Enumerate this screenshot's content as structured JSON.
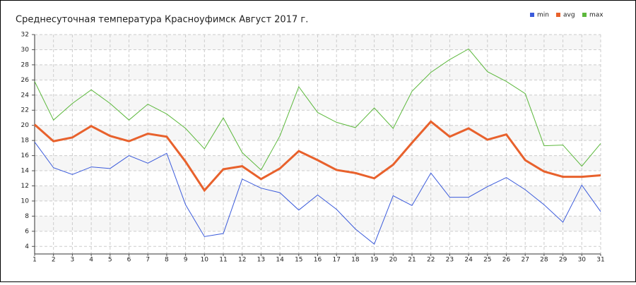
{
  "chart_data": {
    "type": "line",
    "title": "Среднесуточная температура Красноуфимск  Август 2017 г.",
    "x": [
      1,
      2,
      3,
      4,
      5,
      6,
      7,
      8,
      9,
      10,
      11,
      12,
      13,
      14,
      15,
      16,
      17,
      18,
      19,
      20,
      21,
      22,
      23,
      24,
      25,
      26,
      27,
      28,
      29,
      30,
      31
    ],
    "xlim": [
      1,
      31
    ],
    "xticks": [
      1,
      2,
      3,
      4,
      5,
      6,
      7,
      8,
      9,
      10,
      11,
      12,
      13,
      14,
      15,
      16,
      17,
      18,
      19,
      20,
      21,
      22,
      23,
      24,
      25,
      26,
      27,
      28,
      29,
      30,
      31
    ],
    "ylim": [
      3,
      32
    ],
    "yticks": [
      4,
      6,
      8,
      10,
      12,
      14,
      16,
      18,
      20,
      22,
      24,
      26,
      28,
      30,
      32
    ],
    "grid": true,
    "legend": "top-right",
    "series": [
      {
        "name": "min",
        "color": "#3b5bdb",
        "values": [
          17.8,
          14.4,
          13.5,
          14.5,
          14.3,
          16.0,
          15.0,
          16.3,
          9.5,
          5.3,
          5.7,
          12.9,
          11.7,
          11.1,
          8.8,
          10.8,
          8.9,
          6.3,
          4.3,
          10.7,
          9.4,
          13.7,
          10.5,
          10.5,
          11.9,
          13.1,
          11.5,
          9.5,
          7.2,
          12.1,
          8.6
        ]
      },
      {
        "name": "avg",
        "color": "#e8612c",
        "values": [
          20.1,
          17.9,
          18.4,
          19.9,
          18.6,
          17.9,
          18.9,
          18.5,
          15.2,
          11.4,
          14.2,
          14.6,
          12.9,
          14.3,
          16.6,
          15.4,
          14.1,
          13.7,
          13.0,
          14.8,
          17.7,
          20.5,
          18.5,
          19.6,
          18.1,
          18.8,
          15.4,
          13.9,
          13.2,
          13.2,
          13.4
        ]
      },
      {
        "name": "max",
        "color": "#5cb83c",
        "values": [
          25.8,
          20.7,
          22.9,
          24.7,
          22.9,
          20.7,
          22.8,
          21.5,
          19.6,
          16.9,
          21.0,
          16.4,
          14.1,
          18.6,
          25.1,
          21.7,
          20.4,
          19.7,
          22.3,
          19.6,
          24.5,
          27.0,
          28.7,
          30.1,
          27.1,
          25.8,
          24.2,
          17.3,
          17.4,
          14.6,
          17.6
        ]
      }
    ]
  }
}
